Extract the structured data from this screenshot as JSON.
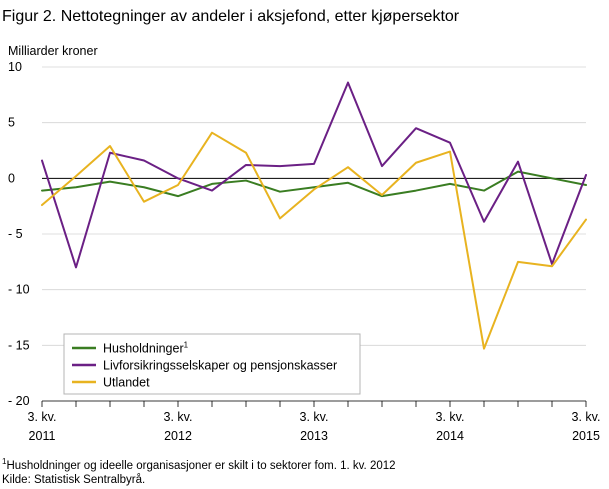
{
  "chart_data": {
    "type": "line",
    "title": "Figur 2. Nettotegninger av andeler i aksjefond, etter kjøpersektor",
    "ylabel": "Milliarder  kroner",
    "ylim": [
      -20,
      10
    ],
    "yticks": [
      10,
      5,
      0,
      -5,
      -10,
      -15,
      -20
    ],
    "ytick_labels": [
      "10",
      "5",
      "0",
      "- 5",
      "- 10",
      "- 15",
      "- 20"
    ],
    "x": [
      "2011K3",
      "2011K4",
      "2012K1",
      "2012K2",
      "2012K3",
      "2012K4",
      "2013K1",
      "2013K2",
      "2013K3",
      "2013K4",
      "2014K1",
      "2014K2",
      "2014K3",
      "2014K4",
      "2015K1",
      "2015K2",
      "2015K3"
    ],
    "xtick_labels": [
      {
        "index": 0,
        "line1": "3. kv.",
        "line2": "2011"
      },
      {
        "index": 4,
        "line1": "3. kv.",
        "line2": "2012"
      },
      {
        "index": 8,
        "line1": "3. kv.",
        "line2": "2013"
      },
      {
        "index": 12,
        "line1": "3. kv.",
        "line2": "2014"
      },
      {
        "index": 16,
        "line1": "3. kv.",
        "line2": "2015"
      }
    ],
    "grid": true,
    "legend_position": "bottom-left",
    "series": [
      {
        "name": "Husholdninger",
        "superscript": "1",
        "color": "#3a7d22",
        "values": [
          -1.1,
          -0.8,
          -0.3,
          -0.8,
          -1.6,
          -0.5,
          -0.2,
          -1.2,
          -0.8,
          -0.4,
          -1.6,
          -1.1,
          -0.5,
          -1.1,
          0.6,
          0.0,
          -0.6
        ]
      },
      {
        "name": "Livforsikringsselskaper og pensjonskasser",
        "superscript": "",
        "color": "#6b2085",
        "values": [
          1.6,
          -8.0,
          2.3,
          1.6,
          0.0,
          -1.1,
          1.2,
          1.1,
          1.3,
          8.6,
          1.1,
          4.5,
          3.2,
          -3.9,
          1.5,
          -7.7,
          0.3
        ]
      },
      {
        "name": "Utlandet",
        "superscript": "",
        "color": "#e8b320",
        "values": [
          -2.4,
          0.2,
          2.9,
          -2.1,
          -0.6,
          4.1,
          2.3,
          -3.6,
          -1.0,
          1.0,
          -1.5,
          1.4,
          2.4,
          -15.3,
          -7.5,
          -7.9,
          -3.7
        ]
      }
    ],
    "footnote": {
      "marker": "1",
      "text": "Husholdninger og ideelle organisasjoner er skilt i to sektorer fom. 1. kv. 2012"
    },
    "source": "Kilde: Statistisk Sentralbyrå."
  }
}
